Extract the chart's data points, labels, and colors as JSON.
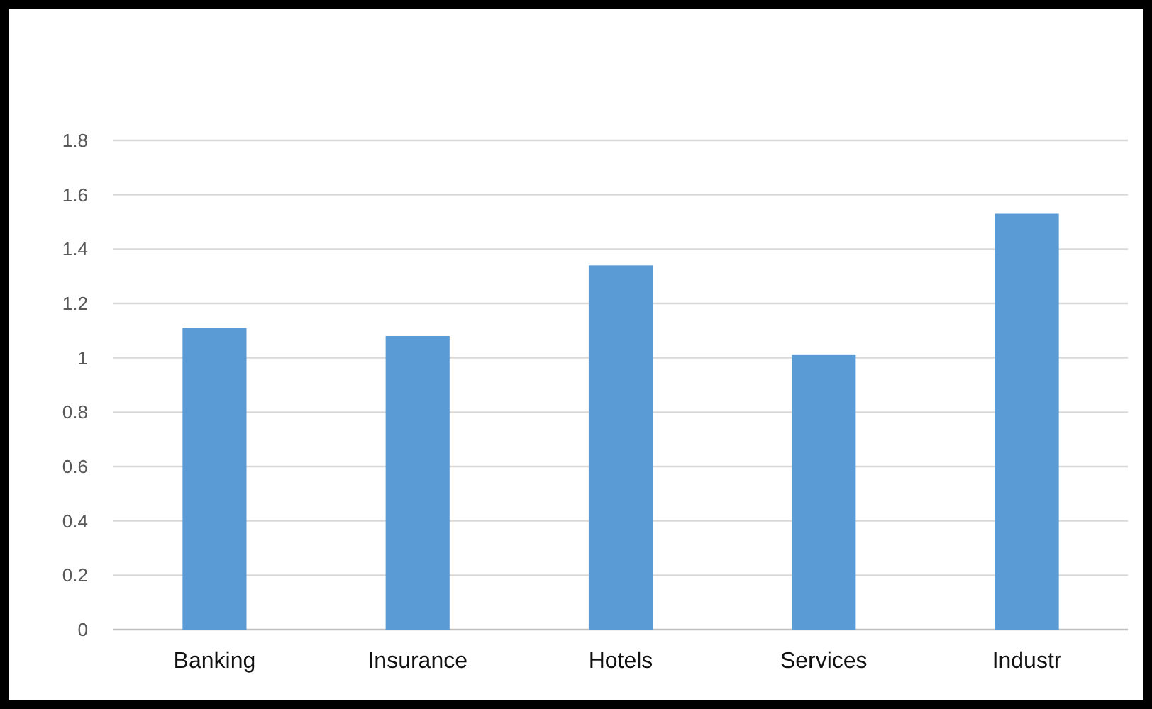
{
  "chart_data": {
    "type": "bar",
    "categories": [
      "Banking",
      "Insurance",
      "Hotels",
      "Services",
      "Industr"
    ],
    "values": [
      1.11,
      1.08,
      1.34,
      1.01,
      1.53
    ],
    "color": "#5b9bd5",
    "ylim": [
      0,
      1.8
    ],
    "yticks": [
      0,
      0.2,
      0.4,
      0.6,
      0.8,
      1,
      1.2,
      1.4,
      1.6,
      1.8
    ],
    "grid": "y"
  }
}
